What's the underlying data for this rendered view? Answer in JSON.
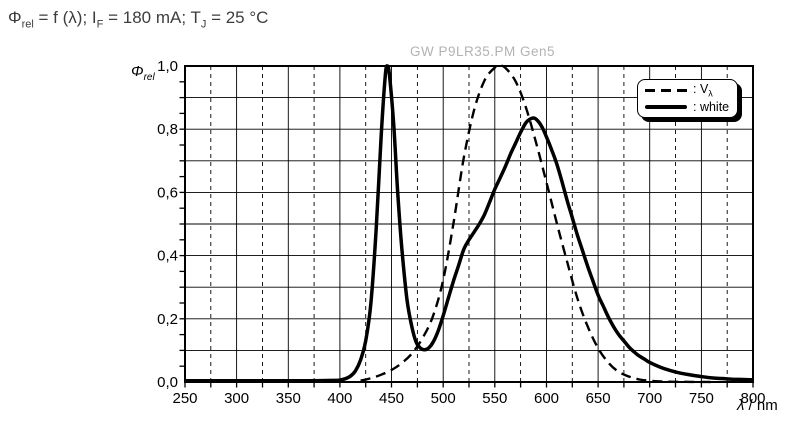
{
  "title": {
    "phi": "Φ",
    "phi_sub": "rel",
    "seg1": " = f (λ); I",
    "seg1_sub": "F",
    "seg2": " = 180 mA; T",
    "seg2_sub": "J",
    "seg3": " = 25 °C"
  },
  "watermark": "GW P9LR35.PM Gen5",
  "y_axis": {
    "symbol": "Φ",
    "subscript": "rel"
  },
  "x_axis": {
    "symbol": "λ",
    "unit": " / nm"
  },
  "legend": {
    "items": [
      {
        "label": ": V",
        "sub": "λ",
        "style": "dashed"
      },
      {
        "label": ": white",
        "sub": "",
        "style": "solid"
      }
    ]
  },
  "colors": {
    "curve": "#000000",
    "grid": "#000000",
    "title_text": "#3d3d3d",
    "watermark_text": "#b3b3b3",
    "background": "#ffffff"
  },
  "chart_data": {
    "type": "line",
    "title": "Φrel = f (λ); IF = 180 mA; TJ = 25 °C",
    "xlabel": "λ / nm",
    "ylabel": "Φrel",
    "xlim": [
      250,
      800
    ],
    "ylim": [
      0,
      1.0
    ],
    "grid": {
      "x_major_step": 50,
      "x_minor_step": 25,
      "y_major_step": 0.1,
      "y_minor_tick_step": 0.05
    },
    "legend_position": "upper-right",
    "x_ticks": [
      {
        "v": 250,
        "label": "250"
      },
      {
        "v": 300,
        "label": "300"
      },
      {
        "v": 350,
        "label": "350"
      },
      {
        "v": 400,
        "label": "400"
      },
      {
        "v": 450,
        "label": "450"
      },
      {
        "v": 500,
        "label": "500"
      },
      {
        "v": 550,
        "label": "550"
      },
      {
        "v": 600,
        "label": "600"
      },
      {
        "v": 650,
        "label": "650"
      },
      {
        "v": 700,
        "label": "700"
      },
      {
        "v": 750,
        "label": "750"
      },
      {
        "v": 800,
        "label": "800"
      }
    ],
    "y_ticks": [
      {
        "v": 0,
        "label": "0,0"
      },
      {
        "v": 0.2,
        "label": "0,2"
      },
      {
        "v": 0.4,
        "label": "0,4"
      },
      {
        "v": 0.6,
        "label": "0,6"
      },
      {
        "v": 0.8,
        "label": "0,8"
      },
      {
        "v": 1.0,
        "label": "1,0"
      }
    ],
    "series": [
      {
        "name": "V_lambda",
        "style": "dashed",
        "points": [
          [
            420,
            0.004
          ],
          [
            430,
            0.012
          ],
          [
            440,
            0.023
          ],
          [
            450,
            0.038
          ],
          [
            460,
            0.06
          ],
          [
            470,
            0.091
          ],
          [
            480,
            0.139
          ],
          [
            490,
            0.208
          ],
          [
            500,
            0.323
          ],
          [
            510,
            0.503
          ],
          [
            520,
            0.71
          ],
          [
            530,
            0.862
          ],
          [
            540,
            0.954
          ],
          [
            550,
            0.995
          ],
          [
            555,
            1.0
          ],
          [
            560,
            0.995
          ],
          [
            570,
            0.952
          ],
          [
            580,
            0.87
          ],
          [
            590,
            0.757
          ],
          [
            600,
            0.631
          ],
          [
            610,
            0.503
          ],
          [
            620,
            0.381
          ],
          [
            630,
            0.265
          ],
          [
            640,
            0.175
          ],
          [
            650,
            0.107
          ],
          [
            660,
            0.061
          ],
          [
            670,
            0.032
          ],
          [
            680,
            0.017
          ],
          [
            690,
            0.008
          ],
          [
            700,
            0.004
          ],
          [
            710,
            0.002
          ],
          [
            720,
            0.001
          ],
          [
            730,
            0.0006
          ],
          [
            740,
            0.0004
          ],
          [
            750,
            0.0002
          ],
          [
            760,
            0.0001
          ]
        ]
      },
      {
        "name": "white",
        "style": "solid",
        "points": [
          [
            250,
            0.004
          ],
          [
            280,
            0.004
          ],
          [
            310,
            0.004
          ],
          [
            340,
            0.004
          ],
          [
            370,
            0.004
          ],
          [
            395,
            0.005
          ],
          [
            400,
            0.006
          ],
          [
            405,
            0.01
          ],
          [
            410,
            0.018
          ],
          [
            415,
            0.035
          ],
          [
            420,
            0.07
          ],
          [
            425,
            0.13
          ],
          [
            430,
            0.25
          ],
          [
            435,
            0.48
          ],
          [
            440,
            0.78
          ],
          [
            444,
            0.97
          ],
          [
            446,
            1.0
          ],
          [
            448,
            0.97
          ],
          [
            452,
            0.82
          ],
          [
            456,
            0.6
          ],
          [
            460,
            0.42
          ],
          [
            465,
            0.26
          ],
          [
            470,
            0.17
          ],
          [
            474,
            0.125
          ],
          [
            478,
            0.107
          ],
          [
            482,
            0.102
          ],
          [
            486,
            0.108
          ],
          [
            490,
            0.125
          ],
          [
            495,
            0.16
          ],
          [
            500,
            0.21
          ],
          [
            505,
            0.265
          ],
          [
            510,
            0.32
          ],
          [
            515,
            0.37
          ],
          [
            520,
            0.42
          ],
          [
            525,
            0.45
          ],
          [
            530,
            0.475
          ],
          [
            535,
            0.5
          ],
          [
            540,
            0.53
          ],
          [
            545,
            0.57
          ],
          [
            550,
            0.61
          ],
          [
            555,
            0.645
          ],
          [
            560,
            0.68
          ],
          [
            565,
            0.72
          ],
          [
            570,
            0.755
          ],
          [
            575,
            0.79
          ],
          [
            580,
            0.82
          ],
          [
            584,
            0.832
          ],
          [
            588,
            0.835
          ],
          [
            592,
            0.825
          ],
          [
            596,
            0.805
          ],
          [
            600,
            0.775
          ],
          [
            605,
            0.735
          ],
          [
            610,
            0.69
          ],
          [
            615,
            0.635
          ],
          [
            620,
            0.575
          ],
          [
            625,
            0.52
          ],
          [
            630,
            0.465
          ],
          [
            635,
            0.415
          ],
          [
            640,
            0.365
          ],
          [
            645,
            0.32
          ],
          [
            650,
            0.275
          ],
          [
            655,
            0.24
          ],
          [
            660,
            0.205
          ],
          [
            665,
            0.175
          ],
          [
            670,
            0.15
          ],
          [
            675,
            0.13
          ],
          [
            680,
            0.11
          ],
          [
            685,
            0.095
          ],
          [
            690,
            0.082
          ],
          [
            695,
            0.072
          ],
          [
            700,
            0.062
          ],
          [
            710,
            0.047
          ],
          [
            720,
            0.036
          ],
          [
            730,
            0.028
          ],
          [
            740,
            0.022
          ],
          [
            750,
            0.017
          ],
          [
            760,
            0.013
          ],
          [
            770,
            0.011
          ],
          [
            780,
            0.009
          ],
          [
            790,
            0.008
          ],
          [
            800,
            0.007
          ]
        ]
      }
    ]
  }
}
